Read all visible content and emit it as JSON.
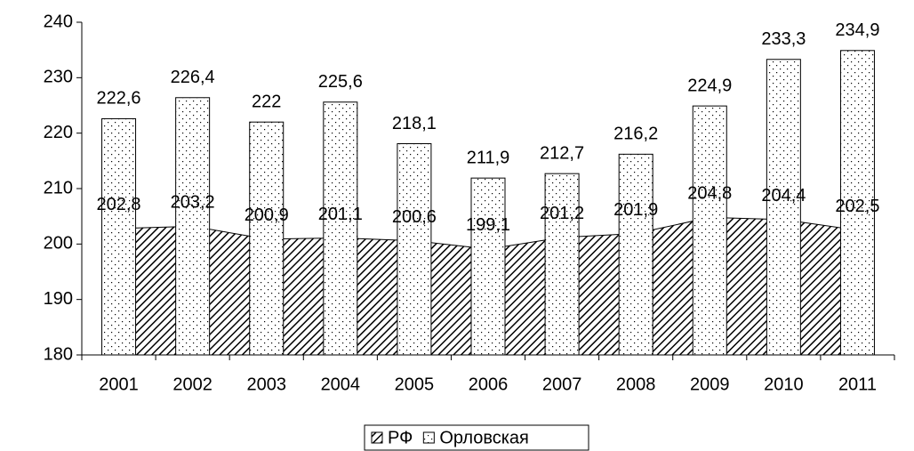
{
  "chart_data": {
    "type": "bar_area",
    "categories": [
      "2001",
      "2002",
      "2003",
      "2004",
      "2005",
      "2006",
      "2007",
      "2008",
      "2009",
      "2010",
      "2011"
    ],
    "series": [
      {
        "name": "РФ",
        "type": "area",
        "values": [
          202.8,
          203.2,
          200.9,
          201.1,
          200.6,
          199.1,
          201.2,
          201.9,
          204.8,
          204.4,
          202.5
        ],
        "value_labels": [
          "202,8",
          "203,2",
          "200,9",
          "201,1",
          "200,6",
          "199,1",
          "201,2",
          "201,9",
          "204,8",
          "204,4",
          "202,5"
        ]
      },
      {
        "name": "Орловская",
        "type": "bar",
        "values": [
          222.6,
          226.4,
          222,
          225.6,
          218.1,
          211.9,
          212.7,
          216.2,
          224.9,
          233.3,
          234.9
        ],
        "value_labels": [
          "222,6",
          "226,4",
          "222",
          "225,6",
          "218,1",
          "211,9",
          "212,7",
          "216,2",
          "224,9",
          "233,3",
          "234,9"
        ]
      }
    ],
    "ylim": [
      180,
      240
    ],
    "yticks": [
      180,
      190,
      200,
      210,
      220,
      230,
      240
    ],
    "legend": "bottom"
  }
}
